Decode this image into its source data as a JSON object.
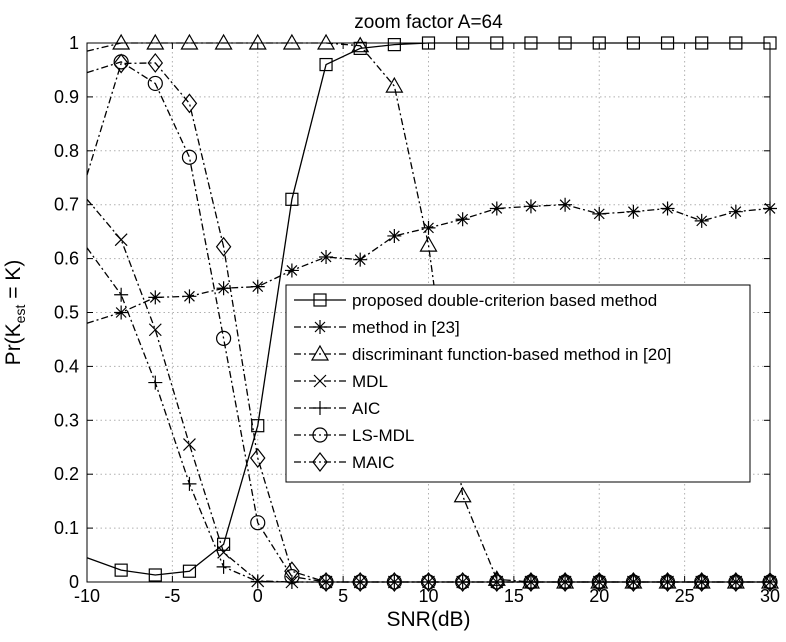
{
  "chart_data": {
    "type": "line",
    "title": "zoom factor A=64",
    "xlabel": "SNR(dB)",
    "ylabel": {
      "prefix": "Pr(K",
      "sub": "est",
      "suffix": " = K)"
    },
    "xlim": [
      -10,
      30
    ],
    "ylim": [
      0,
      1
    ],
    "xticks": [
      -10,
      -5,
      0,
      5,
      10,
      15,
      20,
      25,
      30
    ],
    "yticks": [
      0,
      0.1,
      0.2,
      0.3,
      0.4,
      0.5,
      0.6,
      0.7,
      0.8,
      0.9,
      1
    ],
    "yticklabels": [
      "0",
      "0.1",
      "0.2",
      "0.3",
      "0.4",
      "0.5",
      "0.6",
      "0.7",
      "0.8",
      "0.9",
      "1"
    ],
    "grid": true,
    "legend_position": "right-center",
    "colors": {
      "line": "#000000",
      "grid": "#b0b0b0",
      "background": "#ffffff"
    },
    "series": [
      {
        "name": "proposed double-criterion based method",
        "marker": "square",
        "dash": "solid",
        "x": [
          -10,
          -8,
          -6,
          -4,
          -2,
          0,
          2,
          4,
          6,
          8,
          10,
          12,
          14,
          16,
          18,
          20,
          22,
          24,
          26,
          28,
          30
        ],
        "y": [
          0.045,
          0.022,
          0.013,
          0.02,
          0.07,
          0.29,
          0.71,
          0.96,
          0.99,
          0.997,
          1,
          1,
          1,
          1,
          1,
          1,
          1,
          1,
          1,
          1,
          1
        ]
      },
      {
        "name": "method in [23]",
        "marker": "asterisk",
        "dash": "dashdot",
        "x": [
          -10,
          -8,
          -6,
          -4,
          -2,
          0,
          2,
          4,
          6,
          8,
          10,
          12,
          14,
          16,
          18,
          20,
          22,
          24,
          26,
          28,
          30
        ],
        "y": [
          0.48,
          0.5,
          0.528,
          0.53,
          0.545,
          0.548,
          0.578,
          0.603,
          0.598,
          0.642,
          0.657,
          0.673,
          0.693,
          0.697,
          0.7,
          0.683,
          0.687,
          0.693,
          0.67,
          0.687,
          0.693
        ]
      },
      {
        "name": "discriminant function-based method in [20]",
        "marker": "triangle",
        "dash": "dashdot",
        "x": [
          -10,
          -8,
          -6,
          -4,
          -2,
          0,
          2,
          4,
          6,
          8,
          10,
          12,
          14,
          16,
          18,
          20,
          22,
          24,
          26,
          28,
          30
        ],
        "y": [
          0.985,
          1,
          1,
          1,
          1,
          1,
          1,
          1,
          0.995,
          0.92,
          0.625,
          0.16,
          0.005,
          0,
          0,
          0,
          0,
          0,
          0,
          0,
          0
        ]
      },
      {
        "name": "MDL",
        "marker": "x",
        "dash": "dashdot",
        "x": [
          -10,
          -8,
          -6,
          -4,
          -2,
          0,
          2,
          4,
          6,
          8,
          10,
          12,
          14,
          16,
          18,
          20,
          22,
          24,
          26,
          28,
          30
        ],
        "y": [
          0.71,
          0.635,
          0.468,
          0.255,
          0.055,
          0.002,
          0,
          0,
          0,
          0,
          0,
          0,
          0,
          0,
          0,
          0,
          0,
          0,
          0,
          0,
          0
        ]
      },
      {
        "name": "AIC",
        "marker": "plus",
        "dash": "dashdot",
        "x": [
          -10,
          -8,
          -6,
          -4,
          -2,
          0,
          2,
          4,
          6,
          8,
          10,
          12,
          14,
          16,
          18,
          20,
          22,
          24,
          26,
          28,
          30
        ],
        "y": [
          0.62,
          0.533,
          0.37,
          0.182,
          0.028,
          0.001,
          0,
          0,
          0,
          0,
          0,
          0,
          0,
          0,
          0,
          0,
          0,
          0,
          0,
          0,
          0
        ]
      },
      {
        "name": "LS-MDL",
        "marker": "circle",
        "dash": "dashdot",
        "x": [
          -10,
          -8,
          -6,
          -4,
          -2,
          0,
          2,
          4,
          6,
          8,
          10,
          12,
          14,
          16,
          18,
          20,
          22,
          24,
          26,
          28,
          30
        ],
        "y": [
          0.945,
          0.965,
          0.925,
          0.788,
          0.452,
          0.11,
          0.01,
          0,
          0,
          0,
          0,
          0,
          0,
          0,
          0,
          0,
          0,
          0,
          0,
          0,
          0
        ]
      },
      {
        "name": "MAIC",
        "marker": "diamond",
        "dash": "dashdot",
        "x": [
          -10,
          -8,
          -6,
          -4,
          -2,
          0,
          2,
          4,
          6,
          8,
          10,
          12,
          14,
          16,
          18,
          20,
          22,
          24,
          26,
          28,
          30
        ],
        "y": [
          0.755,
          0.962,
          0.963,
          0.888,
          0.622,
          0.23,
          0.02,
          0,
          0,
          0,
          0,
          0,
          0,
          0,
          0,
          0,
          0,
          0,
          0,
          0,
          0
        ]
      }
    ]
  }
}
